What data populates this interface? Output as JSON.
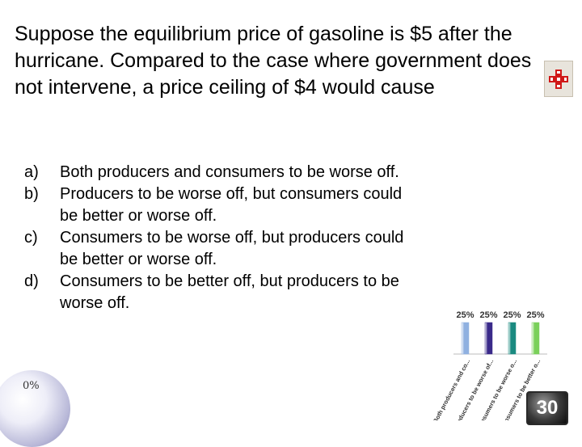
{
  "question": {
    "text": "Suppose the equilibrium price of gasoline is $5 after the hurricane. Compared to the case where government does not intervene, a price ceiling of $4 would cause"
  },
  "answers": [
    {
      "letter": "a)",
      "text": "Both producers and consumers to be worse off."
    },
    {
      "letter": "b)",
      "text": "Producers to be worse off, but consumers could be better or worse off."
    },
    {
      "letter": "c)",
      "text": "Consumers to be worse off, but producers could be better or worse off."
    },
    {
      "letter": "d)",
      "text": "Consumers to be better off, but producers to be worse off."
    }
  ],
  "participation": {
    "label": "0%"
  },
  "timer": {
    "value": "30"
  },
  "colors": {
    "bar_a": "#8fb0e0",
    "bar_b": "#3a2a8a",
    "bar_c": "#1a8a80",
    "bar_d": "#7ad05a"
  },
  "icons": {
    "question_icon": "red-cross-grid-icon"
  },
  "chart_data": {
    "type": "bar",
    "categories": [
      "Both producers and co...",
      "Producers to be worse of...",
      "Consumers to be worse o...",
      "Consumers to be better o..."
    ],
    "values": [
      25,
      25,
      25,
      25
    ],
    "value_labels": [
      "25%",
      "25%",
      "25%",
      "25%"
    ],
    "ylim": [
      0,
      100
    ],
    "grid": false,
    "legend": "none"
  }
}
